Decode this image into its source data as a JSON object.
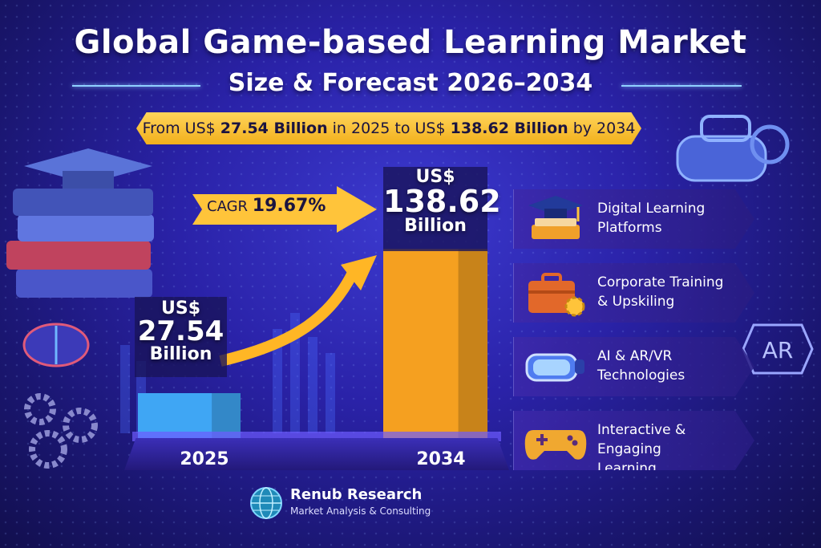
{
  "header": {
    "title": "Global Game-based Learning Market",
    "subtitle": "Size & Forecast 2026–2034"
  },
  "ribbon": {
    "prefix": "From US$ ",
    "start_value": "27.54 Billion",
    "middle": " in 2025 to US$ ",
    "end_value": "138.62 Billion",
    "suffix": " by 2034"
  },
  "cagr": {
    "label": "CAGR",
    "value": "19.67%"
  },
  "chart_data": {
    "type": "bar",
    "categories": [
      "2025",
      "2034"
    ],
    "values": [
      27.54,
      138.62
    ],
    "value_labels": [
      {
        "currency": "US$",
        "amount": "27.54",
        "unit": "Billion"
      },
      {
        "currency": "US$",
        "amount": "138.62",
        "unit": "Billion"
      }
    ],
    "colors": [
      "#3fa6f4",
      "#f5a020"
    ],
    "title": "",
    "xlabel": "",
    "ylabel": "",
    "ylim": [
      0,
      140
    ],
    "grid": false
  },
  "segments": [
    {
      "label_line1": "Digital Learning",
      "label_line2": "Platforms",
      "icon": "graduation-cap-icon"
    },
    {
      "label_line1": "Corporate Training",
      "label_line2": "& Upskiling",
      "icon": "briefcase-gear-icon"
    },
    {
      "label_line1": "AI & AR/VR",
      "label_line2": "Technologies",
      "icon": "vr-headset-icon"
    },
    {
      "label_line1": "Interactive & Engaging",
      "label_line2": "Learning",
      "icon": "gamepad-icon"
    }
  ],
  "decor": {
    "ar_badge": "AR"
  },
  "brand": {
    "name": "Renub Research",
    "tagline": "Market Analysis & Consulting",
    "icon": "globe-icon"
  }
}
